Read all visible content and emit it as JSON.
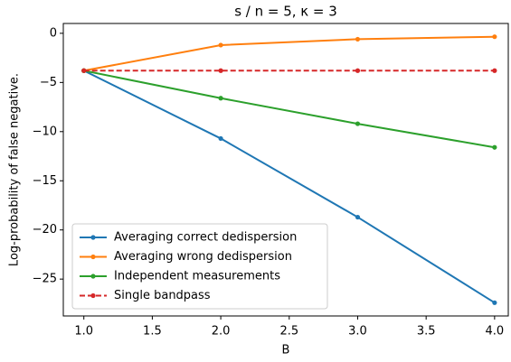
{
  "chart_data": {
    "type": "line",
    "title": "s / n = 5, κ = 3",
    "xlabel": "B",
    "ylabel": "Log-probability of false negative.",
    "x": [
      1,
      2,
      3,
      4
    ],
    "series": [
      {
        "name": "Averaging correct dedispersion",
        "color": "#1f77b4",
        "linestyle": "solid",
        "values": [
          -3.8,
          -10.7,
          -18.7,
          -27.4
        ]
      },
      {
        "name": "Averaging wrong dedispersion",
        "color": "#ff7f0e",
        "linestyle": "solid",
        "values": [
          -3.8,
          -1.2,
          -0.6,
          -0.35
        ]
      },
      {
        "name": "Independent measurements",
        "color": "#2ca02c",
        "linestyle": "solid",
        "values": [
          -3.8,
          -6.6,
          -9.2,
          -11.6
        ]
      },
      {
        "name": "Single bandpass",
        "color": "#d62728",
        "linestyle": "dashed",
        "values": [
          -3.8,
          -3.8,
          -3.8,
          -3.8
        ]
      }
    ],
    "xlim": [
      0.85,
      4.1
    ],
    "ylim": [
      -28.75,
      1.0
    ],
    "xticks": [
      {
        "value": 1,
        "label": "1.0"
      },
      1.5,
      {
        "value": 2,
        "label": "2.0"
      },
      2.5,
      {
        "value": 3,
        "label": "3.0"
      },
      3.5,
      {
        "value": 4,
        "label": "4.0"
      }
    ],
    "yticks": [
      0,
      {
        "value": -5,
        "label": "−5"
      },
      {
        "value": -10,
        "label": "−10"
      },
      {
        "value": -15,
        "label": "−15"
      },
      {
        "value": -20,
        "label": "−20"
      },
      {
        "value": -25,
        "label": "−25"
      }
    ],
    "legend": "lower left",
    "grid": false
  }
}
